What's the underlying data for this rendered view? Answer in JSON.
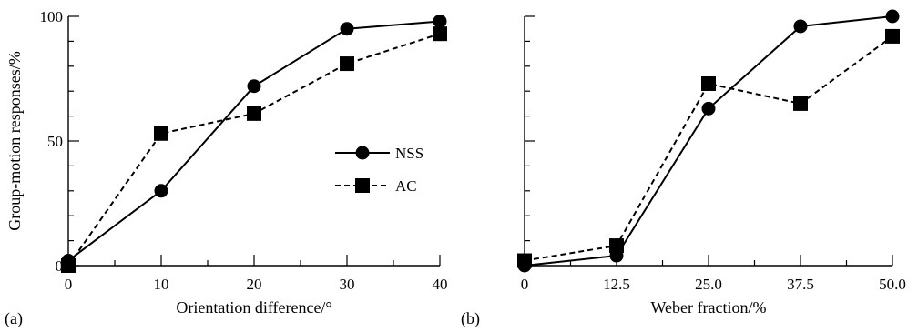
{
  "chart_data": [
    {
      "type": "line",
      "panel_label": "(a)",
      "xlabel": "Orientation difference/°",
      "ylabel": "Group-motion responses/%",
      "x": [
        0,
        10,
        20,
        30,
        40
      ],
      "x_tick_labels": [
        "0",
        "10",
        "20",
        "30",
        "40"
      ],
      "y_ticks": [
        0,
        50,
        100
      ],
      "y_tick_labels": [
        "0",
        "50",
        "100"
      ],
      "xlim": [
        0,
        40
      ],
      "ylim": [
        0,
        100
      ],
      "grid": false,
      "legend_position": "center-right",
      "series": [
        {
          "name": "NSS",
          "marker": "circle",
          "line": "solid",
          "values": [
            2,
            30,
            72,
            95,
            98
          ]
        },
        {
          "name": "AC",
          "marker": "square",
          "line": "dashed",
          "values": [
            0,
            53,
            61,
            81,
            93
          ]
        }
      ]
    },
    {
      "type": "line",
      "panel_label": "(b)",
      "xlabel": "Weber fraction/%",
      "ylabel": "",
      "x": [
        0,
        12.5,
        25.0,
        37.5,
        50.0
      ],
      "x_tick_labels": [
        "0",
        "12.5",
        "25.0",
        "37.5",
        "50.0"
      ],
      "y_ticks": [
        0,
        50,
        100
      ],
      "y_tick_labels": [],
      "xlim": [
        0,
        50
      ],
      "ylim": [
        0,
        100
      ],
      "grid": false,
      "series": [
        {
          "name": "NSS",
          "marker": "circle",
          "line": "solid",
          "values": [
            0,
            4,
            63,
            96,
            100
          ]
        },
        {
          "name": "AC",
          "marker": "square",
          "line": "dashed",
          "values": [
            2,
            8,
            73,
            65,
            92
          ]
        }
      ]
    }
  ]
}
